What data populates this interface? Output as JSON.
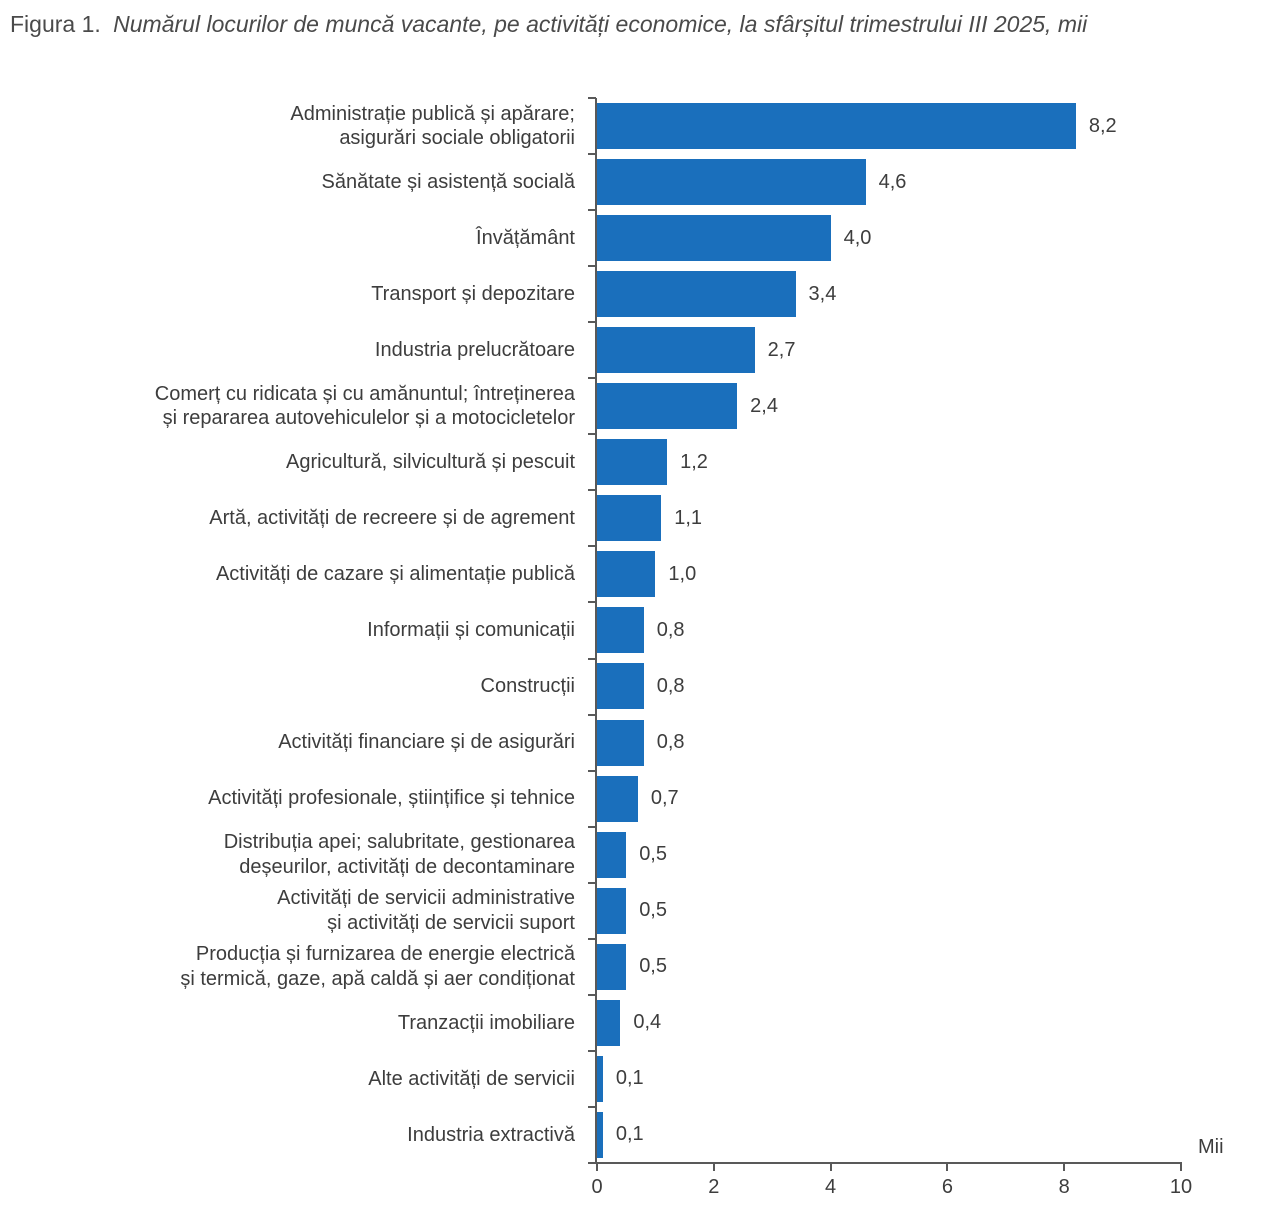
{
  "title": {
    "prefix": "Figura 1.",
    "text": "Numărul locurilor de muncă vacante, pe activități economice, la sfârșitul trimestrului III 2025, mii"
  },
  "chart_data": {
    "type": "bar",
    "orientation": "horizontal",
    "title": "Numărul locurilor de muncă vacante, pe activități economice, la sfârșitul trimestrului III 2025",
    "xlabel": "Mii",
    "ylabel": "",
    "xlim": [
      0,
      10
    ],
    "x_ticks": [
      0,
      2,
      4,
      6,
      8,
      10
    ],
    "x_tick_labels": [
      "0",
      "2",
      "4",
      "6",
      "8",
      "10"
    ],
    "grid": false,
    "legend": false,
    "bar_color": "#1a6fbc",
    "categories": [
      "Administrație publică și apărare;\nasigurări sociale obligatorii",
      "Sănătate și asistență socială",
      "Învățământ",
      "Transport și depozitare",
      "Industria prelucrătoare",
      "Comerț cu ridicata și cu amănuntul; întreținerea\nși repararea autovehiculelor și a motocicletelor",
      "Agricultură, silvicultură și pescuit",
      "Artă, activități de recreere și de agrement",
      "Activități de cazare și alimentație publică",
      "Informații și comunicații",
      "Construcții",
      "Activități financiare și de asigurări",
      "Activități profesionale, științifice și tehnice",
      "Distribuția apei; salubritate, gestionarea\ndeșeurilor, activități de decontaminare",
      "Activități de servicii administrative\nși activități de servicii suport",
      "Producția și furnizarea de energie electrică\nși termică, gaze, apă caldă și aer condiționat",
      "Tranzacții imobiliare",
      "Alte activități de servicii",
      "Industria extractivă"
    ],
    "values": [
      8.2,
      4.6,
      4.0,
      3.4,
      2.7,
      2.4,
      1.2,
      1.1,
      1.0,
      0.8,
      0.8,
      0.8,
      0.7,
      0.5,
      0.5,
      0.5,
      0.4,
      0.1,
      0.1
    ],
    "value_labels": [
      "8,2",
      "4,6",
      "4,0",
      "3,4",
      "2,7",
      "2,4",
      "1,2",
      "1,1",
      "1,0",
      "0,8",
      "0,8",
      "0,8",
      "0,7",
      "0,5",
      "0,5",
      "0,5",
      "0,4",
      "0,1",
      "0,1"
    ]
  }
}
